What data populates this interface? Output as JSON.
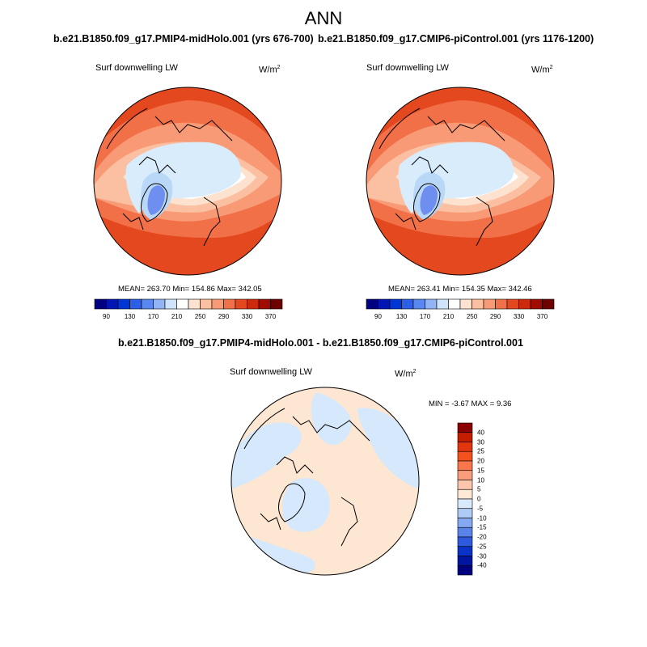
{
  "page": {
    "title": "ANN"
  },
  "panels": [
    {
      "case_title": "b.e21.B1850.f09_g17.PMIP4-midHolo.001 (yrs 676-700)",
      "variable_label": "Surf downwelling LW",
      "units": "W/m",
      "units_exp": "2",
      "stats_text": "MEAN= 263.70  Min= 154.86  Max= 342.05"
    },
    {
      "case_title": "b.e21.B1850.f09_g17.CMIP6-piControl.001 (yrs 1176-1200)",
      "variable_label": "Surf downwelling LW",
      "units": "W/m",
      "units_exp": "2",
      "stats_text": "MEAN= 263.41  Min= 154.35  Max= 342.46"
    }
  ],
  "colorbar_h": {
    "colors": [
      "#000080",
      "#0016b0",
      "#0035d8",
      "#2c5ee8",
      "#5b87f0",
      "#92b4f4",
      "#cfe3fb",
      "#ffffff",
      "#fde2cf",
      "#fbc0a2",
      "#f99a76",
      "#f27048",
      "#e4481f",
      "#cc2a0a",
      "#a00d00",
      "#6e0000"
    ],
    "tick_labels": [
      "90",
      "130",
      "170",
      "210",
      "250",
      "290",
      "330",
      "370"
    ]
  },
  "diff_panel": {
    "title": "b.e21.B1850.f09_g17.PMIP4-midHolo.001 - b.e21.B1850.f09_g17.CMIP6-piControl.001",
    "variable_label": "Surf downwelling LW",
    "units": "W/m",
    "units_exp": "2",
    "stats_text": "MIN =  -3.67 MAX =   9.36"
  },
  "colorbar_v": {
    "colors_top_to_bottom": [
      "#8b0000",
      "#c41e00",
      "#e23610",
      "#f4511e",
      "#f7764b",
      "#f99d7d",
      "#fbc6ab",
      "#ffe8d6",
      "#d7e9fb",
      "#aecbf6",
      "#84a9f1",
      "#5a83ea",
      "#2f5ade",
      "#0a33c8",
      "#0016a0",
      "#000080"
    ],
    "tick_labels": [
      "40",
      "30",
      "25",
      "20",
      "15",
      "10",
      "5",
      "0",
      "-5",
      "-10",
      "-15",
      "-20",
      "-25",
      "-30",
      "-40"
    ]
  },
  "map_colors": {
    "c1": "#6e8ff0",
    "c2": "#b9d7f7",
    "c3": "#d9ecfc",
    "c4": "#ffffff",
    "c5": "#fde2cf",
    "c6": "#fbc0a2",
    "c7": "#f99a76",
    "c8": "#f27048",
    "c9": "#e4481f",
    "c10": "#cc2a0a",
    "diff_pos": "#fde6d2",
    "diff_neg": "#d6e8fb"
  }
}
